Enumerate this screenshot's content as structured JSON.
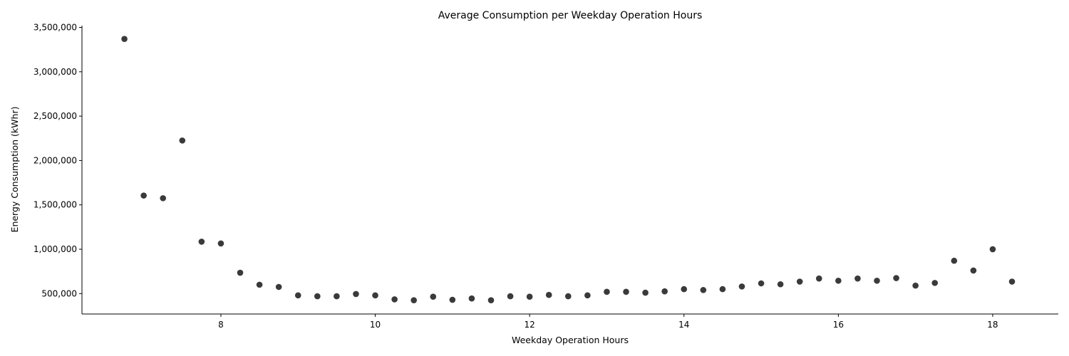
{
  "chart_data": {
    "type": "scatter",
    "title": "Average Consumption per Weekday Operation Hours",
    "xlabel": "Weekday Operation Hours",
    "ylabel": "Energy Consumption (kWhr)",
    "xlim": [
      6.2,
      18.85
    ],
    "ylim": [
      270000,
      3520000
    ],
    "xticks": [
      8,
      10,
      12,
      14,
      16,
      18
    ],
    "xtick_labels": [
      "8",
      "10",
      "12",
      "14",
      "16",
      "18"
    ],
    "yticks": [
      500000,
      1000000,
      1500000,
      2000000,
      2500000,
      3000000,
      3500000
    ],
    "ytick_labels": [
      "500,000",
      "1,000,000",
      "1,500,000",
      "2,000,000",
      "2,500,000",
      "3,000,000",
      "3,500,000"
    ],
    "grid": false,
    "point_color": "#3a3a3a",
    "series": [
      {
        "x": [
          6.75,
          7.0,
          7.25,
          7.5,
          7.75,
          8.0,
          8.25,
          8.5,
          8.75,
          9.0,
          9.25,
          9.5,
          9.75,
          10.0,
          10.25,
          10.5,
          10.75,
          11.0,
          11.25,
          11.5,
          11.75,
          12.0,
          12.25,
          12.5,
          12.75,
          13.0,
          13.25,
          13.5,
          13.75,
          14.0,
          14.25,
          14.5,
          14.75,
          15.0,
          15.25,
          15.5,
          15.75,
          16.0,
          16.25,
          16.5,
          16.75,
          17.0,
          17.25,
          17.5,
          17.75,
          18.0,
          18.25
        ],
        "y": [
          3370000,
          1605000,
          1575000,
          2225000,
          1085000,
          1065000,
          735000,
          600000,
          575000,
          480000,
          470000,
          470000,
          495000,
          480000,
          435000,
          425000,
          465000,
          430000,
          445000,
          425000,
          470000,
          465000,
          485000,
          470000,
          480000,
          520000,
          520000,
          510000,
          525000,
          550000,
          540000,
          550000,
          580000,
          615000,
          605000,
          635000,
          670000,
          645000,
          670000,
          645000,
          675000,
          590000,
          620000,
          870000,
          760000,
          1000000,
          635000
        ]
      }
    ]
  }
}
